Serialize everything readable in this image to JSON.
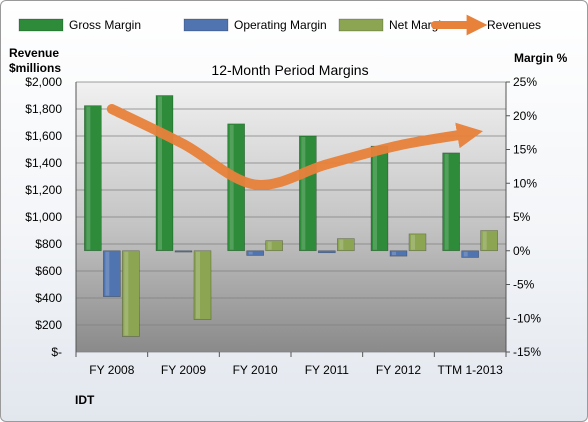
{
  "chart_data": {
    "type": "bar",
    "title": "12-Month Period Margins",
    "categories": [
      "FY 2008",
      "FY 2009",
      "FY 2010",
      "FY 2011",
      "FY 2012",
      "TTM 1-2013"
    ],
    "series": [
      {
        "name": "Gross Margin",
        "axis": "right",
        "kind": "bar",
        "values": [
          21.5,
          23.0,
          18.8,
          17.0,
          15.5,
          14.5
        ],
        "color": "#2e8b3a"
      },
      {
        "name": "Operating Margin",
        "axis": "right",
        "kind": "bar",
        "values": [
          -6.8,
          -0.2,
          -0.7,
          -0.3,
          -0.8,
          -1.0
        ],
        "color": "#4f74b0"
      },
      {
        "name": "Net Margin",
        "axis": "right",
        "kind": "bar",
        "values": [
          -12.7,
          -10.2,
          1.5,
          1.8,
          2.5,
          3.0
        ],
        "color": "#8ca552"
      },
      {
        "name": "Revenues",
        "axis": "left",
        "kind": "line",
        "values": [
          1800,
          1540,
          1240,
          1390,
          1530,
          1620
        ],
        "color": "#e8813a"
      }
    ],
    "left_axis": {
      "label_line1": "Revenue",
      "label_line2": "$millions",
      "min": 0,
      "max": 2000,
      "step": 200,
      "ticks": [
        "$-",
        "$200",
        "$400",
        "$600",
        "$800",
        "$1,000",
        "$1,200",
        "$1,400",
        "$1,600",
        "$1,800",
        "$2,000"
      ]
    },
    "right_axis": {
      "label": "Margin %",
      "min": -15,
      "max": 25,
      "step": 5,
      "ticks": [
        "-15%",
        "-10%",
        "-5%",
        "0%",
        "5%",
        "10%",
        "15%",
        "20%",
        "25%"
      ]
    },
    "grid": true,
    "legend_position": "top",
    "footer": "IDT"
  }
}
